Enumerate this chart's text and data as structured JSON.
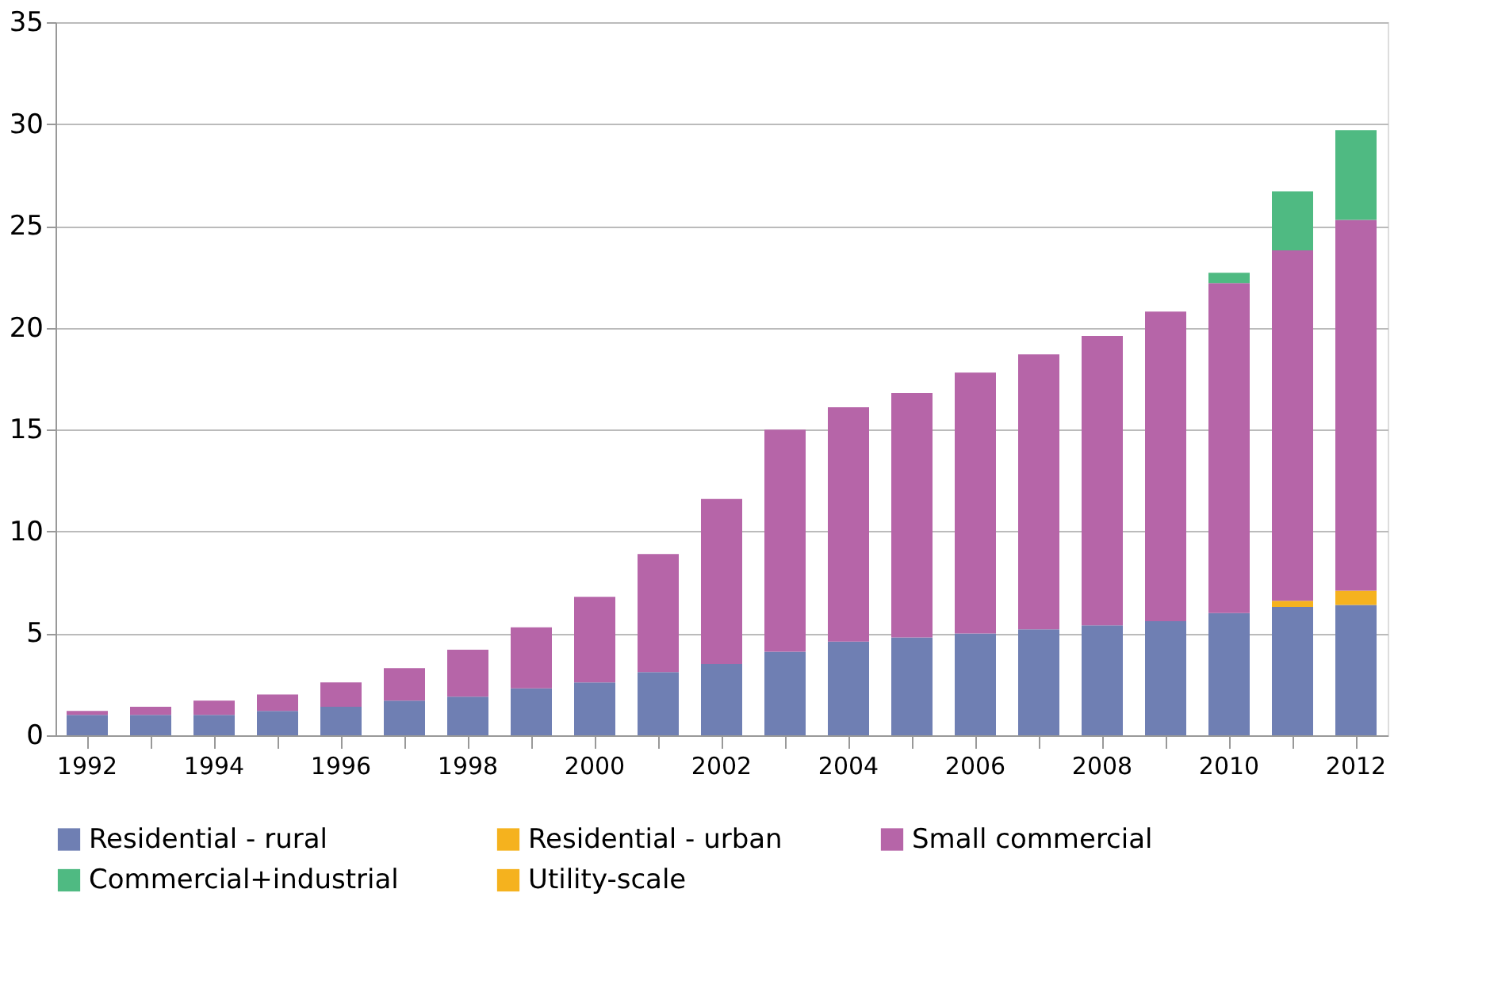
{
  "chart_data": {
    "type": "bar",
    "stacked": true,
    "categories": [
      "1992",
      null,
      "1994",
      null,
      "1996",
      null,
      "1998",
      null,
      "2000",
      null,
      "2002",
      null,
      "2004",
      null,
      "2006",
      null,
      "2008",
      null,
      "2010",
      null,
      "2012"
    ],
    "series": [
      {
        "name": "Residential - rural",
        "color": "#6f7fb3",
        "values": [
          1.0,
          1.0,
          1.0,
          1.2,
          1.4,
          1.7,
          1.9,
          2.3,
          2.6,
          3.1,
          3.5,
          4.1,
          4.6,
          4.8,
          5.0,
          5.2,
          5.4,
          5.6,
          6.0,
          6.3,
          6.4
        ]
      },
      {
        "name": "Residential - urban",
        "color": "#f5b21e",
        "values": [
          0,
          0,
          0,
          0,
          0,
          0,
          0,
          0,
          0,
          0,
          0,
          0,
          0,
          0,
          0,
          0,
          0,
          0,
          0,
          0.3,
          0.7
        ]
      },
      {
        "name": "Small commercial",
        "color": "#b665a8",
        "values": [
          0.2,
          0.4,
          0.7,
          0.8,
          1.2,
          1.6,
          2.3,
          3.0,
          4.2,
          5.8,
          8.1,
          10.9,
          11.5,
          12.0,
          12.8,
          13.5,
          14.2,
          15.2,
          16.2,
          17.2,
          18.2
        ]
      },
      {
        "name": "Commercial+industrial",
        "color": "#4fba82",
        "values": [
          0,
          0,
          0,
          0,
          0,
          0,
          0,
          0,
          0,
          0,
          0,
          0,
          0,
          0,
          0,
          0,
          0,
          0,
          0.5,
          2.9,
          4.4
        ]
      },
      {
        "name": "Utility-scale",
        "color": "#f5b21e",
        "values": [
          0,
          0,
          0,
          0,
          0,
          0,
          0,
          0,
          0,
          0,
          0,
          0,
          0,
          0,
          0,
          0,
          0,
          0,
          0,
          0,
          0
        ]
      }
    ],
    "ylim": [
      0,
      35
    ],
    "yticks": [
      0,
      5,
      10,
      15,
      20,
      25,
      30,
      35
    ],
    "grid": "y",
    "legend": "bottom"
  }
}
